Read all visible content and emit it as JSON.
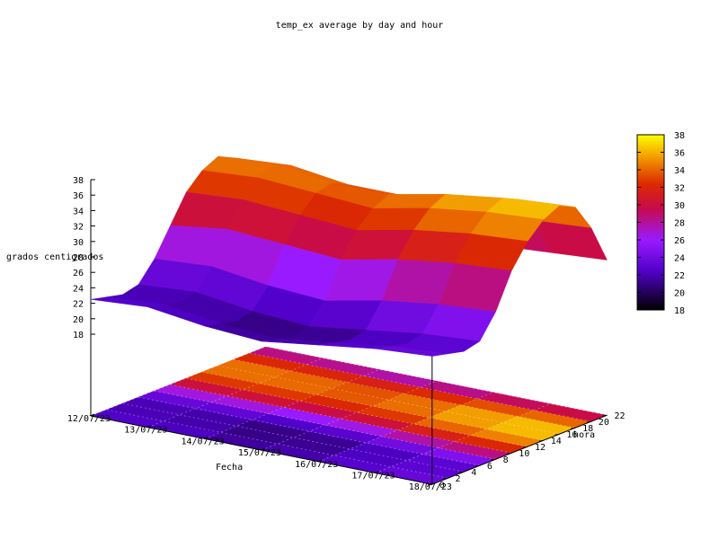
{
  "chart_data": {
    "type": "surface3d",
    "title": "temp_ex average by day and hour",
    "xlabel": "Fecha",
    "ylabel": "hora",
    "zlabel": "grados centigrados",
    "x_ticks": [
      "12/07/23",
      "13/07/23",
      "14/07/23",
      "15/07/23",
      "16/07/23",
      "17/07/23",
      "18/07/23"
    ],
    "y_ticks": [
      "0",
      "2",
      "4",
      "6",
      "8",
      "10",
      "12",
      "14",
      "16",
      "18",
      "20",
      "22"
    ],
    "z_ticks": [
      "18",
      "20",
      "22",
      "24",
      "26",
      "28",
      "30",
      "32",
      "34",
      "36",
      "38"
    ],
    "colorbox_ticks": [
      "18",
      "20",
      "22",
      "24",
      "26",
      "28",
      "30",
      "32",
      "34",
      "36",
      "38"
    ],
    "zlim": [
      18,
      38
    ],
    "cblim": [
      18,
      38
    ],
    "palette": "black-purple-red-orange-yellow",
    "projection": "pm3d surface with color map on base",
    "hours": [
      0,
      2,
      4,
      6,
      8,
      10,
      12,
      14,
      16,
      18,
      20,
      22
    ],
    "days": [
      "12/07/23",
      "13/07/23",
      "14/07/23",
      "15/07/23",
      "16/07/23",
      "17/07/23",
      "18/07/23"
    ],
    "values": [
      [
        22.5,
        22.0,
        21.5,
        22.0,
        24.5,
        28.0,
        31.5,
        33.5,
        34.5,
        33.5,
        30.5,
        26.0
      ],
      [
        23.0,
        22.5,
        22.0,
        22.5,
        25.0,
        29.0,
        32.0,
        34.0,
        35.0,
        34.0,
        31.0,
        26.5
      ],
      [
        22.0,
        21.5,
        21.0,
        21.5,
        24.0,
        28.5,
        31.5,
        33.5,
        34.0,
        33.0,
        30.0,
        25.5
      ],
      [
        21.5,
        21.0,
        20.5,
        21.0,
        23.5,
        28.0,
        31.0,
        33.0,
        34.0,
        33.0,
        30.5,
        25.0
      ],
      [
        22.5,
        22.0,
        21.5,
        22.0,
        25.0,
        29.5,
        32.5,
        34.5,
        35.5,
        34.5,
        31.5,
        26.5
      ],
      [
        23.5,
        23.0,
        22.5,
        23.0,
        26.0,
        30.5,
        33.5,
        35.5,
        36.5,
        35.5,
        32.0,
        27.0
      ],
      [
        24.0,
        23.5,
        23.0,
        23.5,
        26.5,
        31.0,
        34.0,
        36.0,
        37.0,
        36.0,
        32.5,
        27.5
      ]
    ]
  }
}
